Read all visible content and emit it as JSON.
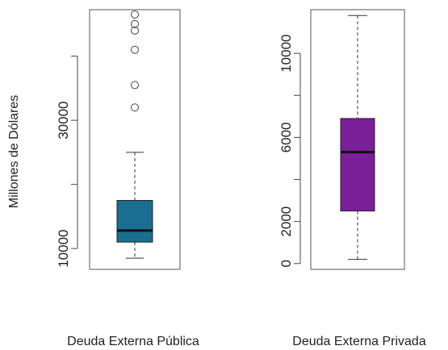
{
  "chart_data": [
    {
      "type": "box",
      "xlabel": "Deuda Externa Pública",
      "ylabel": "Millones de Dólares",
      "y_ticks": [
        10000,
        30000
      ],
      "y_ticks_unlabeled": [
        20000,
        40000
      ],
      "ylim": [
        7000,
        47000
      ],
      "box": {
        "min": 8500,
        "q1": 11000,
        "median": 12800,
        "q3": 17500,
        "max": 25000
      },
      "outliers": [
        32000,
        35500,
        41000,
        44000,
        45000,
        46500
      ],
      "color": "#1a6e8f"
    },
    {
      "type": "box",
      "xlabel": "Deuda Externa Privada",
      "ylabel": "",
      "y_ticks": [
        0,
        2000,
        6000,
        10000
      ],
      "y_ticks_unlabeled": [
        4000,
        8000
      ],
      "ylim": [
        -200,
        12000
      ],
      "box": {
        "min": 200,
        "q1": 2500,
        "median": 5300,
        "q3": 6900,
        "max": 11800
      },
      "outliers": [],
      "color": "#7b1e9a"
    }
  ]
}
